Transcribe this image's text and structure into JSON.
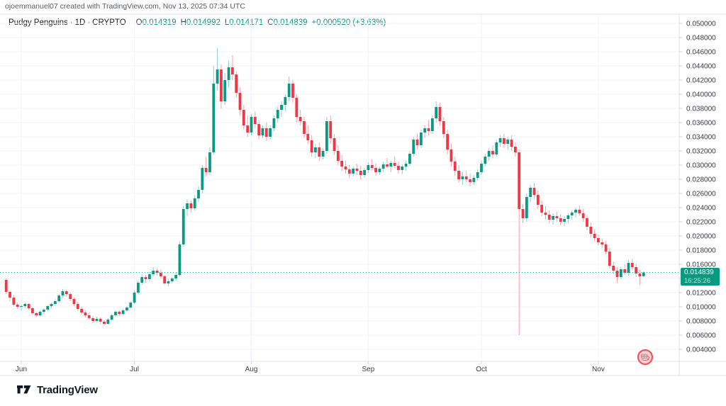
{
  "attribution": "ojoemmanuel07 created with TradingView.com, Nov 13, 2025 07:34 UTC",
  "header": {
    "symbol": "Pudgy Penguins",
    "separator": "·",
    "interval": "1D",
    "market": "CRYPTO",
    "o_label": "O",
    "o_value": "0.014319",
    "h_label": "H",
    "h_value": "0.014992",
    "l_label": "L",
    "l_value": "0.014171",
    "c_label": "C",
    "c_value": "0.014839",
    "change": "+0.000520 (+3.63%)"
  },
  "price_scale_label": {
    "price": "0.014839",
    "countdown": "16:25:26"
  },
  "footer": {
    "logo_text": "TradingView"
  },
  "colors": {
    "up": "#0a9a84",
    "down": "#f23645",
    "accent": "#089981",
    "grid": "#f0f3fa",
    "border": "#e0e3eb",
    "axis_text": "#363a45",
    "tick": "#d1d4dc"
  },
  "chart_data": {
    "type": "candlestick",
    "title": "Pudgy Penguins · 1D · CRYPTO",
    "interval": "1D",
    "current_price": 0.014839,
    "ylim": [
      0.0023,
      0.0513
    ],
    "grid": true,
    "y_axis_ticks": [
      0.05,
      0.048,
      0.046,
      0.044,
      0.042,
      0.04,
      0.038,
      0.036,
      0.034,
      0.032,
      0.03,
      0.028,
      0.026,
      0.024,
      0.022,
      0.02,
      0.018,
      0.016,
      0.014,
      0.012,
      0.01,
      0.008,
      0.006,
      0.004
    ],
    "x_axis_labels": [
      {
        "label": "Jun",
        "index": 4
      },
      {
        "label": "Jul",
        "index": 34
      },
      {
        "label": "Aug",
        "index": 65
      },
      {
        "label": "Sep",
        "index": 96
      },
      {
        "label": "Oct",
        "index": 126
      },
      {
        "label": "Nov",
        "index": 157
      }
    ],
    "candles": [
      [
        0.0138,
        0.014,
        0.0118,
        0.0121
      ],
      [
        0.0121,
        0.0123,
        0.0108,
        0.0113
      ],
      [
        0.0113,
        0.0117,
        0.0101,
        0.0103
      ],
      [
        0.0103,
        0.0106,
        0.0097,
        0.01
      ],
      [
        0.01,
        0.0103,
        0.0095,
        0.0101
      ],
      [
        0.0101,
        0.0106,
        0.0098,
        0.0104
      ],
      [
        0.0104,
        0.0105,
        0.0096,
        0.0098
      ],
      [
        0.0098,
        0.01,
        0.0089,
        0.0091
      ],
      [
        0.0091,
        0.0093,
        0.0085,
        0.0088
      ],
      [
        0.0088,
        0.0095,
        0.0086,
        0.0093
      ],
      [
        0.0093,
        0.0098,
        0.009,
        0.0096
      ],
      [
        0.0096,
        0.0102,
        0.0094,
        0.0101
      ],
      [
        0.0101,
        0.0106,
        0.0098,
        0.0104
      ],
      [
        0.0104,
        0.011,
        0.0101,
        0.0108
      ],
      [
        0.0108,
        0.0118,
        0.0106,
        0.0116
      ],
      [
        0.0116,
        0.0125,
        0.0113,
        0.0122
      ],
      [
        0.0122,
        0.0124,
        0.0114,
        0.0118
      ],
      [
        0.0118,
        0.012,
        0.0108,
        0.0111
      ],
      [
        0.0111,
        0.0113,
        0.0101,
        0.0104
      ],
      [
        0.0104,
        0.0107,
        0.0094,
        0.0097
      ],
      [
        0.0097,
        0.01,
        0.0089,
        0.0092
      ],
      [
        0.0092,
        0.0095,
        0.0085,
        0.0088
      ],
      [
        0.0088,
        0.0092,
        0.0082,
        0.0084
      ],
      [
        0.0084,
        0.0087,
        0.0077,
        0.008
      ],
      [
        0.008,
        0.0086,
        0.0078,
        0.0083
      ],
      [
        0.0083,
        0.0085,
        0.0076,
        0.0079
      ],
      [
        0.0079,
        0.0081,
        0.0074,
        0.0076
      ],
      [
        0.0076,
        0.0084,
        0.0075,
        0.0082
      ],
      [
        0.0082,
        0.009,
        0.008,
        0.0088
      ],
      [
        0.0088,
        0.0095,
        0.0086,
        0.0093
      ],
      [
        0.0093,
        0.0095,
        0.0087,
        0.009
      ],
      [
        0.009,
        0.0097,
        0.0088,
        0.0095
      ],
      [
        0.0095,
        0.0101,
        0.0093,
        0.0099
      ],
      [
        0.0099,
        0.0108,
        0.0097,
        0.0106
      ],
      [
        0.0106,
        0.0123,
        0.0104,
        0.012
      ],
      [
        0.012,
        0.0137,
        0.0118,
        0.0134
      ],
      [
        0.0134,
        0.0146,
        0.0131,
        0.0142
      ],
      [
        0.0142,
        0.0145,
        0.0134,
        0.0139
      ],
      [
        0.0139,
        0.0149,
        0.0136,
        0.0146
      ],
      [
        0.0146,
        0.0156,
        0.0143,
        0.0151
      ],
      [
        0.0151,
        0.0154,
        0.0144,
        0.0148
      ],
      [
        0.0148,
        0.0152,
        0.014,
        0.0143
      ],
      [
        0.0143,
        0.0145,
        0.0131,
        0.0133
      ],
      [
        0.0133,
        0.0139,
        0.0129,
        0.0136
      ],
      [
        0.0136,
        0.0142,
        0.0133,
        0.014
      ],
      [
        0.014,
        0.0148,
        0.0137,
        0.0145
      ],
      [
        0.0145,
        0.0192,
        0.0143,
        0.0188
      ],
      [
        0.0188,
        0.0242,
        0.0185,
        0.0238
      ],
      [
        0.0238,
        0.0252,
        0.0228,
        0.0246
      ],
      [
        0.0246,
        0.025,
        0.0233,
        0.0239
      ],
      [
        0.0239,
        0.0258,
        0.0236,
        0.0253
      ],
      [
        0.0253,
        0.027,
        0.0248,
        0.0265
      ],
      [
        0.0265,
        0.03,
        0.026,
        0.0296
      ],
      [
        0.0296,
        0.0312,
        0.0284,
        0.029
      ],
      [
        0.029,
        0.0325,
        0.0286,
        0.0318
      ],
      [
        0.0318,
        0.044,
        0.0315,
        0.0415
      ],
      [
        0.0415,
        0.0465,
        0.0405,
        0.0435
      ],
      [
        0.0435,
        0.0442,
        0.038,
        0.039
      ],
      [
        0.039,
        0.043,
        0.0385,
        0.042
      ],
      [
        0.042,
        0.0448,
        0.041,
        0.0438
      ],
      [
        0.0438,
        0.0455,
        0.042,
        0.0428
      ],
      [
        0.0428,
        0.0432,
        0.0395,
        0.0402
      ],
      [
        0.0402,
        0.041,
        0.037,
        0.0378
      ],
      [
        0.0378,
        0.0385,
        0.035,
        0.0356
      ],
      [
        0.0356,
        0.037,
        0.034,
        0.0346
      ],
      [
        0.0346,
        0.0372,
        0.0342,
        0.0368
      ],
      [
        0.0368,
        0.0376,
        0.0352,
        0.0358
      ],
      [
        0.0358,
        0.0364,
        0.0336,
        0.0342
      ],
      [
        0.0342,
        0.0356,
        0.0338,
        0.0352
      ],
      [
        0.0352,
        0.036,
        0.0334,
        0.034
      ],
      [
        0.034,
        0.0356,
        0.0336,
        0.0352
      ],
      [
        0.0352,
        0.037,
        0.0348,
        0.0366
      ],
      [
        0.0366,
        0.0382,
        0.036,
        0.0378
      ],
      [
        0.0378,
        0.039,
        0.0368,
        0.0385
      ],
      [
        0.0385,
        0.04,
        0.0376,
        0.0396
      ],
      [
        0.0396,
        0.0425,
        0.039,
        0.0415
      ],
      [
        0.0415,
        0.042,
        0.0388,
        0.0395
      ],
      [
        0.0395,
        0.04,
        0.036,
        0.0368
      ],
      [
        0.0368,
        0.0378,
        0.0356,
        0.0362
      ],
      [
        0.0362,
        0.0368,
        0.0338,
        0.0344
      ],
      [
        0.0344,
        0.0356,
        0.033,
        0.0335
      ],
      [
        0.0335,
        0.0342,
        0.0312,
        0.0318
      ],
      [
        0.0318,
        0.033,
        0.031,
        0.0325
      ],
      [
        0.0325,
        0.0332,
        0.0306,
        0.0312
      ],
      [
        0.0312,
        0.0324,
        0.0308,
        0.032
      ],
      [
        0.032,
        0.0368,
        0.0316,
        0.0362
      ],
      [
        0.0362,
        0.037,
        0.033,
        0.0338
      ],
      [
        0.0338,
        0.0344,
        0.0314,
        0.032
      ],
      [
        0.032,
        0.0328,
        0.03,
        0.0306
      ],
      [
        0.0306,
        0.0314,
        0.0292,
        0.0298
      ],
      [
        0.0298,
        0.0306,
        0.0288,
        0.0294
      ],
      [
        0.0294,
        0.03,
        0.0282,
        0.0288
      ],
      [
        0.0288,
        0.0298,
        0.0284,
        0.0295
      ],
      [
        0.0295,
        0.0302,
        0.0286,
        0.0292
      ],
      [
        0.0292,
        0.0299,
        0.028,
        0.0286
      ],
      [
        0.0286,
        0.0296,
        0.0282,
        0.0293
      ],
      [
        0.0293,
        0.0304,
        0.0289,
        0.03
      ],
      [
        0.03,
        0.0308,
        0.0292,
        0.0296
      ],
      [
        0.0296,
        0.0302,
        0.0285,
        0.029
      ],
      [
        0.029,
        0.0298,
        0.0286,
        0.0295
      ],
      [
        0.0295,
        0.0305,
        0.029,
        0.0301
      ],
      [
        0.0301,
        0.031,
        0.0295,
        0.0298
      ],
      [
        0.0298,
        0.0306,
        0.029,
        0.0303
      ],
      [
        0.0303,
        0.0312,
        0.0296,
        0.0299
      ],
      [
        0.0299,
        0.0305,
        0.0288,
        0.0293
      ],
      [
        0.0293,
        0.0301,
        0.0287,
        0.0298
      ],
      [
        0.0298,
        0.0306,
        0.0292,
        0.0302
      ],
      [
        0.0302,
        0.032,
        0.0299,
        0.0316
      ],
      [
        0.0316,
        0.034,
        0.0312,
        0.0336
      ],
      [
        0.0336,
        0.0344,
        0.0322,
        0.0328
      ],
      [
        0.0328,
        0.035,
        0.0324,
        0.0346
      ],
      [
        0.0346,
        0.0356,
        0.0338,
        0.0352
      ],
      [
        0.0352,
        0.0364,
        0.0342,
        0.0348
      ],
      [
        0.0348,
        0.037,
        0.0344,
        0.0366
      ],
      [
        0.0366,
        0.039,
        0.036,
        0.0382
      ],
      [
        0.0382,
        0.0388,
        0.0356,
        0.0362
      ],
      [
        0.0362,
        0.0368,
        0.0338,
        0.0344
      ],
      [
        0.0344,
        0.035,
        0.0315,
        0.0322
      ],
      [
        0.0322,
        0.033,
        0.0298,
        0.0305
      ],
      [
        0.0305,
        0.0312,
        0.0285,
        0.0292
      ],
      [
        0.0292,
        0.03,
        0.0275,
        0.028
      ],
      [
        0.028,
        0.029,
        0.0272,
        0.0284
      ],
      [
        0.0284,
        0.0292,
        0.0276,
        0.028
      ],
      [
        0.028,
        0.0288,
        0.027,
        0.0276
      ],
      [
        0.0276,
        0.0286,
        0.0272,
        0.0282
      ],
      [
        0.0282,
        0.0294,
        0.0278,
        0.029
      ],
      [
        0.029,
        0.0306,
        0.0286,
        0.0302
      ],
      [
        0.0302,
        0.0316,
        0.0298,
        0.0312
      ],
      [
        0.0312,
        0.0324,
        0.0306,
        0.032
      ],
      [
        0.032,
        0.0328,
        0.031,
        0.0315
      ],
      [
        0.0315,
        0.0336,
        0.0312,
        0.0332
      ],
      [
        0.0332,
        0.0342,
        0.0326,
        0.0338
      ],
      [
        0.0338,
        0.0344,
        0.0324,
        0.033
      ],
      [
        0.033,
        0.034,
        0.0322,
        0.0336
      ],
      [
        0.0336,
        0.0342,
        0.032,
        0.0326
      ],
      [
        0.0326,
        0.0332,
        0.0312,
        0.0318
      ],
      [
        0.0318,
        0.0322,
        0.006,
        0.0238
      ],
      [
        0.0238,
        0.0245,
        0.0218,
        0.0225
      ],
      [
        0.0225,
        0.026,
        0.022,
        0.0255
      ],
      [
        0.0255,
        0.0272,
        0.0248,
        0.0268
      ],
      [
        0.0268,
        0.0275,
        0.0252,
        0.0258
      ],
      [
        0.0258,
        0.0264,
        0.0238,
        0.0244
      ],
      [
        0.0244,
        0.025,
        0.0228,
        0.0233
      ],
      [
        0.0233,
        0.0242,
        0.0224,
        0.023
      ],
      [
        0.023,
        0.0236,
        0.0218,
        0.0223
      ],
      [
        0.0223,
        0.0232,
        0.0216,
        0.0228
      ],
      [
        0.0228,
        0.0234,
        0.022,
        0.0225
      ],
      [
        0.0225,
        0.0231,
        0.0215,
        0.022
      ],
      [
        0.022,
        0.0228,
        0.0214,
        0.0224
      ],
      [
        0.0224,
        0.0232,
        0.0218,
        0.0229
      ],
      [
        0.0229,
        0.0236,
        0.0223,
        0.0233
      ],
      [
        0.0233,
        0.024,
        0.0226,
        0.0237
      ],
      [
        0.0237,
        0.0243,
        0.0228,
        0.0232
      ],
      [
        0.0232,
        0.0238,
        0.022,
        0.0225
      ],
      [
        0.0225,
        0.023,
        0.0208,
        0.0213
      ],
      [
        0.0213,
        0.0219,
        0.0198,
        0.0203
      ],
      [
        0.0203,
        0.021,
        0.0192,
        0.0197
      ],
      [
        0.0197,
        0.0202,
        0.0187,
        0.0191
      ],
      [
        0.0191,
        0.0196,
        0.0183,
        0.0188
      ],
      [
        0.0188,
        0.0193,
        0.0174,
        0.0178
      ],
      [
        0.0178,
        0.0183,
        0.0154,
        0.0158
      ],
      [
        0.0158,
        0.0164,
        0.0146,
        0.0151
      ],
      [
        0.0151,
        0.0156,
        0.0134,
        0.0142
      ],
      [
        0.0142,
        0.0156,
        0.0139,
        0.0153
      ],
      [
        0.0153,
        0.016,
        0.0145,
        0.0148
      ],
      [
        0.0148,
        0.0166,
        0.0144,
        0.0162
      ],
      [
        0.0162,
        0.0168,
        0.0152,
        0.0156
      ],
      [
        0.0156,
        0.016,
        0.0142,
        0.0147
      ],
      [
        0.0147,
        0.0152,
        0.0131,
        0.0143
      ],
      [
        0.014319,
        0.014992,
        0.014171,
        0.014839
      ]
    ]
  }
}
